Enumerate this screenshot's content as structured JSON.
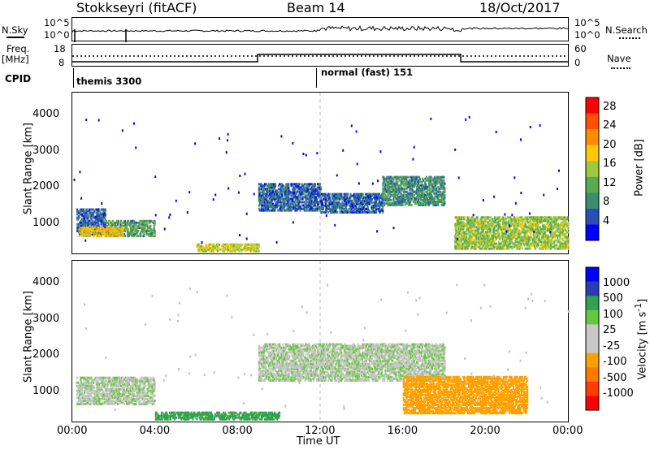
{
  "header": {
    "station": "Stokkseyri (fitACF)",
    "beam": "Beam 14",
    "date": "18/Oct/2017"
  },
  "strip_labels": {
    "nsky": "N.Sky",
    "nsky_hi": "10^5",
    "nsky_lo": "10^0",
    "nsearch": "N.Search",
    "nsearch_hi": "10^5",
    "nsearch_lo": "10^0",
    "freq_top": "Freq.",
    "freq_unit": "[MHz]",
    "freq_hi": "18",
    "freq_lo": "8",
    "nave": "Nave",
    "nave_hi": "60",
    "nave_lo": "0",
    "cpid": "CPID",
    "cpid_1": "themis 3300",
    "cpid_2": "normal (fast) 151"
  },
  "colors": {
    "power_scale": [
      "#0000ff",
      "#2850b4",
      "#3c8c6e",
      "#5aaa50",
      "#a0c83c",
      "#ffc800",
      "#ff8c00",
      "#ff5000",
      "#ff0000"
    ],
    "velocity_scale": [
      "#0000ff",
      "#2a3cb4",
      "#32a050",
      "#64c83c",
      "#c8c8c8",
      "#c8c8c8",
      "#ffa000",
      "#ff7800",
      "#ff3c00",
      "#ff0000"
    ],
    "noise_line": "#000000",
    "scatter_gray": "#c0c0bc"
  },
  "chart_data": [
    {
      "type": "heatmap",
      "panel": "power",
      "ylabel": "Slant Range [km]",
      "yticks": [
        "1000",
        "2000",
        "3000",
        "4000"
      ],
      "ylim": [
        180,
        4600
      ],
      "xlim": [
        0,
        24
      ],
      "colorbar_label": "Power [dB]",
      "colorbar_ticks": [
        "4",
        "8",
        "12",
        "16",
        "20",
        "24",
        "28"
      ],
      "colorbar_range": [
        0,
        30
      ],
      "marker_line_hour": 12,
      "regions": [
        {
          "t0": 0.2,
          "t1": 1.6,
          "r0": 700,
          "r1": 1400,
          "value": 6
        },
        {
          "t0": 1.6,
          "t1": 4.0,
          "r0": 650,
          "r1": 1100,
          "value": 10
        },
        {
          "t0": 0.3,
          "t1": 2.5,
          "r0": 650,
          "r1": 900,
          "value": 18
        },
        {
          "t0": 6.0,
          "t1": 9.0,
          "r0": 230,
          "r1": 420,
          "value": 16
        },
        {
          "t0": 9.0,
          "t1": 12.0,
          "r0": 1350,
          "r1": 2100,
          "value": 6
        },
        {
          "t0": 12.0,
          "t1": 15.0,
          "r0": 1300,
          "r1": 1800,
          "value": 6
        },
        {
          "t0": 15.0,
          "t1": 18.0,
          "r0": 1500,
          "r1": 2300,
          "value": 9
        },
        {
          "t0": 18.5,
          "t1": 24.0,
          "r0": 300,
          "r1": 1200,
          "value": 14
        }
      ]
    },
    {
      "type": "heatmap",
      "panel": "velocity",
      "ylabel": "Slant Range [km]",
      "yticks": [
        "1000",
        "2000",
        "3000",
        "4000"
      ],
      "ylim": [
        180,
        4600
      ],
      "xlim": [
        0,
        24
      ],
      "xticks": [
        "00:00",
        "04:00",
        "08:00",
        "12:00",
        "16:00",
        "20:00",
        "00:00"
      ],
      "xlabel": "Time UT",
      "colorbar_label": "Velocity [m s^-1]",
      "colorbar_ticks": [
        "1000",
        "500",
        "100",
        "25",
        "-25",
        "-100",
        "-500",
        "-1000"
      ],
      "marker_line_hour": 12,
      "regions": [
        {
          "t0": 0.2,
          "t1": 4.0,
          "r0": 650,
          "r1": 1400,
          "value": 0
        },
        {
          "t0": 9.0,
          "t1": 18.0,
          "r0": 1300,
          "r1": 2300,
          "value": 0
        },
        {
          "t0": 16.0,
          "t1": 22.0,
          "r0": 400,
          "r1": 1400,
          "value": -300
        },
        {
          "t0": 4.0,
          "t1": 10.0,
          "r0": 230,
          "r1": 450,
          "value": 150
        }
      ]
    }
  ]
}
